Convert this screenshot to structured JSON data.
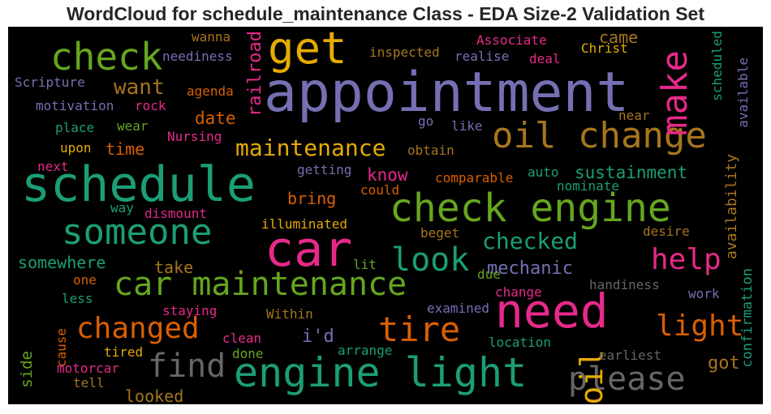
{
  "title": "WordCloud for schedule_maintenance Class - EDA Size-2 Validation Set",
  "colors": {
    "background": "#000000",
    "purple": "#7570b3",
    "green": "#1b9e77",
    "pink": "#e7298a",
    "orange": "#d95f02",
    "lime": "#66a61e",
    "gold": "#e6ab02",
    "brown": "#a6761d",
    "grey": "#666666"
  },
  "chart_data": {
    "type": "wordcloud",
    "title": "WordCloud for schedule_maintenance Class - EDA Size-2 Validation Set",
    "words": [
      {
        "text": "appointment",
        "color": "purple"
      },
      {
        "text": "schedule",
        "color": "green"
      },
      {
        "text": "car",
        "color": "pink"
      },
      {
        "text": "need",
        "color": "pink"
      },
      {
        "text": "check engine",
        "color": "lime"
      },
      {
        "text": "engine light",
        "color": "green"
      },
      {
        "text": "get",
        "color": "gold"
      },
      {
        "text": "check",
        "color": "lime"
      },
      {
        "text": "car maintenance",
        "color": "lime"
      },
      {
        "text": "someone",
        "color": "green"
      },
      {
        "text": "oil change",
        "color": "brown"
      },
      {
        "text": "tire",
        "color": "orange"
      },
      {
        "text": "look",
        "color": "green"
      },
      {
        "text": "make",
        "color": "pink"
      },
      {
        "text": "changed",
        "color": "orange"
      },
      {
        "text": "find",
        "color": "grey"
      },
      {
        "text": "please",
        "color": "grey"
      },
      {
        "text": "oil",
        "color": "gold"
      },
      {
        "text": "help",
        "color": "pink"
      },
      {
        "text": "light",
        "color": "orange"
      },
      {
        "text": "maintenance",
        "color": "gold"
      },
      {
        "text": "checked",
        "color": "green"
      },
      {
        "text": "mechanic",
        "color": "purple"
      },
      {
        "text": "want",
        "color": "brown"
      },
      {
        "text": "sustainment",
        "color": "green"
      },
      {
        "text": "railroad",
        "color": "pink"
      },
      {
        "text": "know",
        "color": "pink"
      },
      {
        "text": "date",
        "color": "orange"
      },
      {
        "text": "time",
        "color": "orange"
      },
      {
        "text": "bring",
        "color": "orange"
      },
      {
        "text": "somewhere",
        "color": "green"
      },
      {
        "text": "take",
        "color": "brown"
      },
      {
        "text": "i'd",
        "color": "purple"
      },
      {
        "text": "got",
        "color": "brown"
      },
      {
        "text": "side",
        "color": "lime"
      },
      {
        "text": "looked",
        "color": "brown"
      },
      {
        "text": "availability",
        "color": "brown"
      },
      {
        "text": "confirmation",
        "color": "green"
      },
      {
        "text": "came",
        "color": "brown"
      },
      {
        "text": "Scripture",
        "color": "purple"
      },
      {
        "text": "neediness",
        "color": "purple"
      },
      {
        "text": "wanna",
        "color": "brown"
      },
      {
        "text": "inspected",
        "color": "brown"
      },
      {
        "text": "realise",
        "color": "purple"
      },
      {
        "text": "deal",
        "color": "pink"
      },
      {
        "text": "Associate",
        "color": "pink"
      },
      {
        "text": "Christ",
        "color": "gold"
      },
      {
        "text": "motivation",
        "color": "purple"
      },
      {
        "text": "rock",
        "color": "pink"
      },
      {
        "text": "agenda",
        "color": "orange"
      },
      {
        "text": "place",
        "color": "green"
      },
      {
        "text": "wear",
        "color": "lime"
      },
      {
        "text": "Nursing",
        "color": "pink"
      },
      {
        "text": "upon",
        "color": "gold"
      },
      {
        "text": "next",
        "color": "pink"
      },
      {
        "text": "go",
        "color": "purple"
      },
      {
        "text": "like",
        "color": "purple"
      },
      {
        "text": "obtain",
        "color": "brown"
      },
      {
        "text": "near",
        "color": "brown"
      },
      {
        "text": "scheduled",
        "color": "green"
      },
      {
        "text": "available",
        "color": "purple"
      },
      {
        "text": "getting",
        "color": "purple"
      },
      {
        "text": "comparable",
        "color": "orange"
      },
      {
        "text": "auto",
        "color": "green"
      },
      {
        "text": "nominate",
        "color": "green"
      },
      {
        "text": "could",
        "color": "orange"
      },
      {
        "text": "way",
        "color": "green"
      },
      {
        "text": "dismount",
        "color": "pink"
      },
      {
        "text": "illuminated",
        "color": "gold"
      },
      {
        "text": "beget",
        "color": "brown"
      },
      {
        "text": "desire",
        "color": "brown"
      },
      {
        "text": "lit",
        "color": "lime"
      },
      {
        "text": "due",
        "color": "lime"
      },
      {
        "text": "change",
        "color": "pink"
      },
      {
        "text": "handiness",
        "color": "grey"
      },
      {
        "text": "work",
        "color": "purple"
      },
      {
        "text": "one",
        "color": "orange"
      },
      {
        "text": "less",
        "color": "green"
      },
      {
        "text": "staying",
        "color": "pink"
      },
      {
        "text": "Within",
        "color": "brown"
      },
      {
        "text": "examined",
        "color": "purple"
      },
      {
        "text": "cause",
        "color": "orange"
      },
      {
        "text": "clean",
        "color": "pink"
      },
      {
        "text": "arrange",
        "color": "green"
      },
      {
        "text": "location",
        "color": "green"
      },
      {
        "text": "earliest",
        "color": "grey"
      },
      {
        "text": "tired",
        "color": "gold"
      },
      {
        "text": "done",
        "color": "lime"
      },
      {
        "text": "motorcar",
        "color": "pink"
      },
      {
        "text": "tell",
        "color": "brown"
      }
    ]
  }
}
